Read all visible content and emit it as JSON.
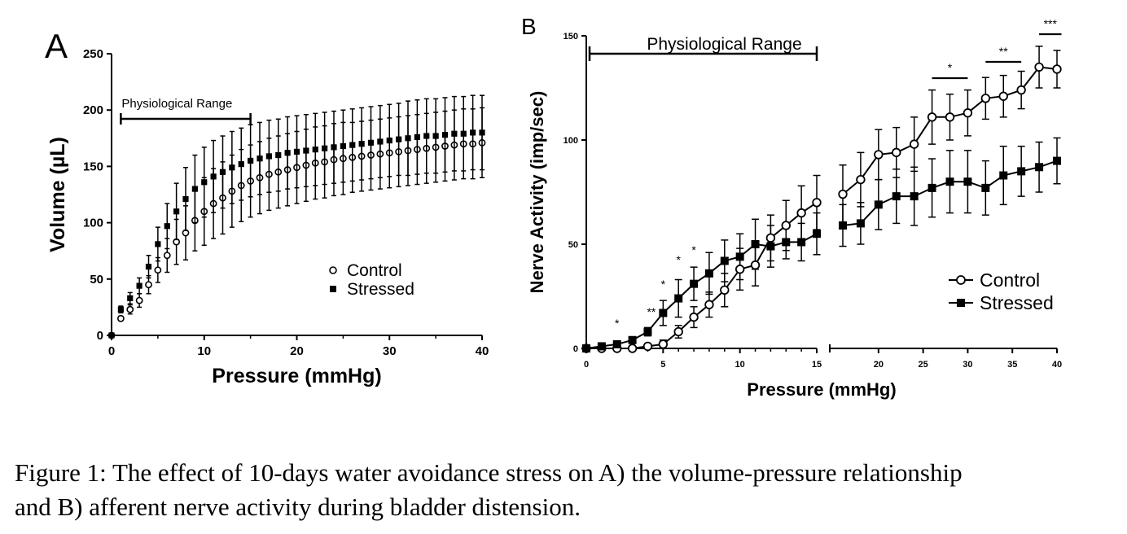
{
  "figure": {
    "caption_line1": "Figure 1: The effect of 10-days water avoidance stress on A) the volume-pressure relationship",
    "caption_line2": "and B) afferent nerve activity during bladder distension."
  },
  "chart_data": [
    {
      "panel": "A",
      "type": "scatter",
      "title": "",
      "xlabel": "Pressure (mmHg)",
      "ylabel": "Volume (µL)",
      "xlim": [
        0,
        40
      ],
      "ylim": [
        0,
        250
      ],
      "xticks": [
        0,
        10,
        20,
        30,
        40
      ],
      "yticks": [
        0,
        50,
        100,
        150,
        200,
        250
      ],
      "legend": "center-right",
      "grid": false,
      "annotation": {
        "label": "Physiological Range",
        "range": [
          1,
          15
        ]
      },
      "series": [
        {
          "name": "Control",
          "marker": "open-circle",
          "x": [
            0,
            1,
            2,
            3,
            4,
            5,
            6,
            7,
            8,
            9,
            10,
            11,
            12,
            13,
            14,
            15,
            16,
            17,
            18,
            19,
            20,
            21,
            22,
            23,
            24,
            25,
            26,
            27,
            28,
            29,
            30,
            31,
            32,
            33,
            34,
            35,
            36,
            37,
            38,
            39,
            40
          ],
          "y": [
            0,
            15,
            23,
            31,
            45,
            58,
            71,
            83,
            91,
            102,
            110,
            117,
            122,
            128,
            133,
            137,
            140,
            143,
            145,
            147,
            149,
            151,
            153,
            154,
            156,
            157,
            158,
            159,
            160,
            161,
            162,
            163,
            164,
            165,
            166,
            167,
            168,
            169,
            170,
            170,
            171
          ],
          "err": [
            0,
            2,
            4,
            6,
            8,
            11,
            15,
            20,
            24,
            27,
            30,
            31,
            32,
            32,
            32,
            32,
            32,
            32,
            32,
            32,
            32,
            32,
            32,
            32,
            32,
            32,
            31,
            31,
            31,
            31,
            31,
            31,
            31,
            31,
            31,
            31,
            31,
            31,
            31,
            31,
            31
          ]
        },
        {
          "name": "Stressed",
          "marker": "filled-square",
          "x": [
            0,
            1,
            2,
            3,
            4,
            5,
            6,
            7,
            8,
            9,
            10,
            11,
            12,
            13,
            14,
            15,
            16,
            17,
            18,
            19,
            20,
            21,
            22,
            23,
            24,
            25,
            26,
            27,
            28,
            29,
            30,
            31,
            32,
            33,
            34,
            35,
            36,
            37,
            38,
            39,
            40
          ],
          "y": [
            0,
            23,
            33,
            44,
            61,
            81,
            97,
            110,
            121,
            130,
            136,
            141,
            145,
            149,
            152,
            155,
            157,
            159,
            160,
            162,
            163,
            164,
            165,
            166,
            167,
            168,
            169,
            170,
            171,
            172,
            173,
            174,
            175,
            176,
            177,
            177,
            178,
            179,
            179,
            180,
            180
          ],
          "err": [
            0,
            3,
            5,
            7,
            10,
            15,
            20,
            25,
            28,
            30,
            31,
            32,
            32,
            32,
            32,
            32,
            32,
            32,
            32,
            32,
            32,
            32,
            32,
            32,
            32,
            32,
            32,
            32,
            32,
            32,
            32,
            32,
            33,
            33,
            33,
            33,
            33,
            33,
            33,
            33,
            33
          ]
        }
      ]
    },
    {
      "panel": "B",
      "type": "line",
      "title": "",
      "xlabel": "Pressure (mmHg)",
      "ylabel": "Nerve Activity (imp/sec)",
      "xlim": [
        0,
        40
      ],
      "ylim": [
        0,
        150
      ],
      "x_axis_break": 15,
      "xticks": [
        0,
        5,
        10,
        15,
        20,
        25,
        30,
        35,
        40
      ],
      "yticks": [
        0,
        50,
        100,
        150
      ],
      "legend": "center-right",
      "grid": false,
      "annotation": {
        "label": "Physiological Range",
        "range": [
          0,
          15
        ]
      },
      "significance": [
        {
          "label": "*",
          "x": 2
        },
        {
          "label": "**",
          "x": 3.6
        },
        {
          "label": "*",
          "x": 5
        },
        {
          "label": "*",
          "x": 6
        },
        {
          "label": "*",
          "x": 7
        },
        {
          "label": "*",
          "x_range": [
            26,
            30
          ]
        },
        {
          "label": "**",
          "x_range": [
            32,
            36
          ]
        },
        {
          "label": "***",
          "x_range": [
            38,
            40.5
          ]
        }
      ],
      "series": [
        {
          "name": "Control",
          "marker": "open-circle",
          "x": [
            0,
            1,
            2,
            3,
            4,
            5,
            6,
            7,
            8,
            9,
            10,
            11,
            12,
            13,
            14,
            15,
            16,
            18,
            20,
            22,
            24,
            26,
            28,
            30,
            32,
            34,
            36,
            38,
            40
          ],
          "y": [
            0,
            0,
            0,
            0,
            1,
            2,
            8,
            15,
            21,
            28,
            38,
            40,
            53,
            59,
            65,
            70,
            74,
            81,
            93,
            94,
            98,
            111,
            111,
            113,
            120,
            121,
            124,
            135,
            134
          ],
          "err": [
            0,
            0,
            0,
            1,
            1,
            2,
            3,
            5,
            6,
            8,
            10,
            10,
            11,
            12,
            13,
            13,
            14,
            13,
            12,
            12,
            13,
            13,
            11,
            11,
            10,
            10,
            9,
            10,
            9
          ]
        },
        {
          "name": "Stressed",
          "marker": "filled-square",
          "x": [
            0,
            1,
            2,
            3,
            4,
            5,
            6,
            7,
            8,
            9,
            10,
            11,
            12,
            13,
            14,
            15,
            16,
            18,
            20,
            22,
            24,
            26,
            28,
            30,
            32,
            34,
            36,
            38,
            40
          ],
          "y": [
            0,
            1,
            2,
            4,
            8,
            17,
            24,
            31,
            36,
            42,
            44,
            50,
            49,
            51,
            51,
            55,
            59,
            60,
            69,
            73,
            73,
            77,
            80,
            80,
            77,
            83,
            85,
            87,
            90
          ],
          "err": [
            0,
            0,
            1,
            1,
            2,
            6,
            9,
            8,
            10,
            10,
            11,
            12,
            10,
            8,
            9,
            10,
            10,
            10,
            12,
            13,
            14,
            14,
            15,
            15,
            13,
            14,
            12,
            12,
            11
          ]
        }
      ]
    }
  ]
}
